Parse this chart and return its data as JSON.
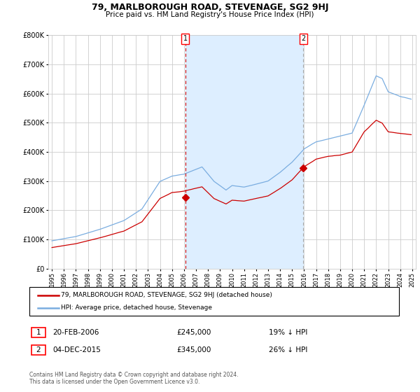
{
  "title": "79, MARLBOROUGH ROAD, STEVENAGE, SG2 9HJ",
  "subtitle": "Price paid vs. HM Land Registry's House Price Index (HPI)",
  "ylim": [
    0,
    800000
  ],
  "yticks": [
    0,
    100000,
    200000,
    300000,
    400000,
    500000,
    600000,
    700000,
    800000
  ],
  "ytick_labels": [
    "£0",
    "£100K",
    "£200K",
    "£300K",
    "£400K",
    "£500K",
    "£600K",
    "£700K",
    "£800K"
  ],
  "xlim_start": 1994.7,
  "xlim_end": 2025.3,
  "grid_color": "#cccccc",
  "bg_color": "#ffffff",
  "hpi_color": "#7aade0",
  "price_color": "#cc0000",
  "shade_color": "#ddeeff",
  "transaction1_date": 2006.12,
  "transaction1_price": 245000,
  "transaction1_label": "1",
  "transaction2_date": 2015.92,
  "transaction2_price": 345000,
  "transaction2_label": "2",
  "legend_label1": "79, MARLBOROUGH ROAD, STEVENAGE, SG2 9HJ (detached house)",
  "legend_label2": "HPI: Average price, detached house, Stevenage",
  "annotation1_num": "1",
  "annotation1_date_str": "20-FEB-2006",
  "annotation1_price_str": "£245,000",
  "annotation1_pct_str": "19% ↓ HPI",
  "annotation2_num": "2",
  "annotation2_date_str": "04-DEC-2015",
  "annotation2_price_str": "£345,000",
  "annotation2_pct_str": "26% ↓ HPI",
  "footer": "Contains HM Land Registry data © Crown copyright and database right 2024.\nThis data is licensed under the Open Government Licence v3.0."
}
